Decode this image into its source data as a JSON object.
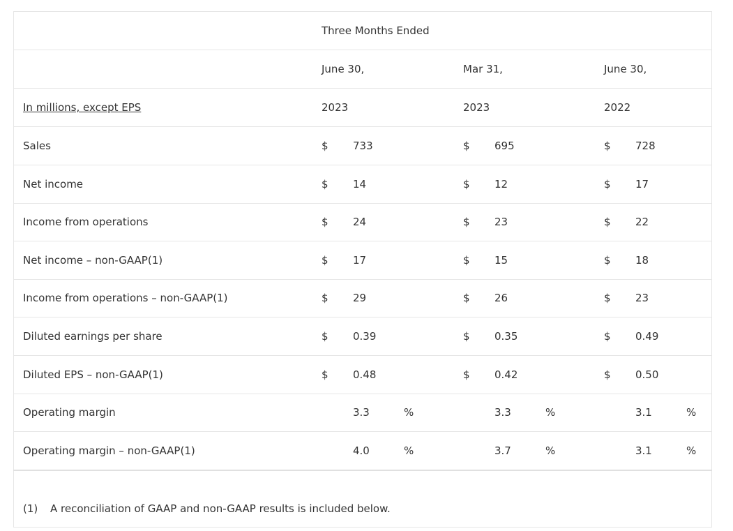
{
  "table": {
    "period_header": "Three Months Ended",
    "date_headers": [
      "June 30,",
      "Mar 31,",
      "June 30,"
    ],
    "row_header_label": "In millions, except EPS",
    "year_headers": [
      "2023",
      "2023",
      "2022"
    ],
    "rows": [
      {
        "label": "Sales",
        "values": [
          {
            "cur": "$",
            "val": "733",
            "pct": ""
          },
          {
            "cur": "$",
            "val": "695",
            "pct": ""
          },
          {
            "cur": "$",
            "val": "728",
            "pct": ""
          }
        ]
      },
      {
        "label": "Net income",
        "values": [
          {
            "cur": "$",
            "val": "14",
            "pct": ""
          },
          {
            "cur": "$",
            "val": "12",
            "pct": ""
          },
          {
            "cur": "$",
            "val": "17",
            "pct": ""
          }
        ]
      },
      {
        "label": "Income from operations",
        "values": [
          {
            "cur": "$",
            "val": "24",
            "pct": ""
          },
          {
            "cur": "$",
            "val": "23",
            "pct": ""
          },
          {
            "cur": "$",
            "val": "22",
            "pct": ""
          }
        ]
      },
      {
        "label": "Net income – non-GAAP(1)",
        "values": [
          {
            "cur": "$",
            "val": "17",
            "pct": ""
          },
          {
            "cur": "$",
            "val": "15",
            "pct": ""
          },
          {
            "cur": "$",
            "val": "18",
            "pct": ""
          }
        ]
      },
      {
        "label": "Income from operations – non-GAAP(1)",
        "values": [
          {
            "cur": "$",
            "val": "29",
            "pct": ""
          },
          {
            "cur": "$",
            "val": "26",
            "pct": ""
          },
          {
            "cur": "$",
            "val": "23",
            "pct": ""
          }
        ]
      },
      {
        "label": "Diluted earnings per share",
        "values": [
          {
            "cur": "$",
            "val": "0.39",
            "pct": ""
          },
          {
            "cur": "$",
            "val": "0.35",
            "pct": ""
          },
          {
            "cur": "$",
            "val": "0.49",
            "pct": ""
          }
        ]
      },
      {
        "label": "Diluted EPS – non-GAAP(1)",
        "values": [
          {
            "cur": "$",
            "val": "0.48",
            "pct": ""
          },
          {
            "cur": "$",
            "val": "0.42",
            "pct": ""
          },
          {
            "cur": "$",
            "val": "0.50",
            "pct": ""
          }
        ]
      },
      {
        "label": "Operating margin",
        "values": [
          {
            "cur": "",
            "val": "3.3",
            "pct": "%"
          },
          {
            "cur": "",
            "val": "3.3",
            "pct": "%"
          },
          {
            "cur": "",
            "val": "3.1",
            "pct": "%"
          }
        ]
      },
      {
        "label": "Operating margin – non-GAAP(1)",
        "values": [
          {
            "cur": "",
            "val": "4.0",
            "pct": "%"
          },
          {
            "cur": "",
            "val": "3.7",
            "pct": "%"
          },
          {
            "cur": "",
            "val": "3.1",
            "pct": "%"
          }
        ]
      }
    ]
  },
  "footnote": {
    "marker": "(1)",
    "text": "A reconciliation of GAAP and non-GAAP results is included below."
  }
}
